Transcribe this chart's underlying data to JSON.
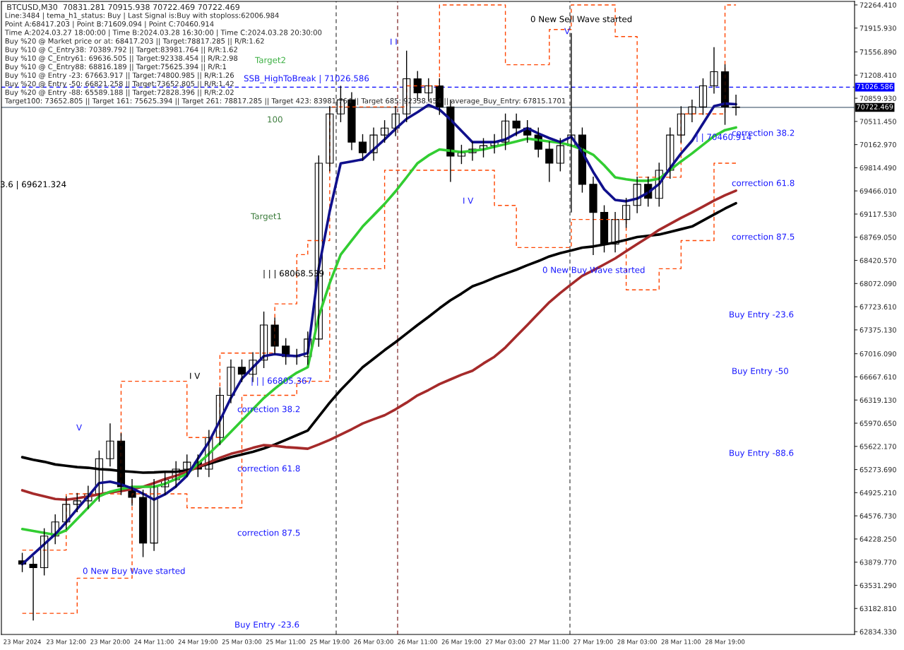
{
  "chart_data": {
    "type": "candlestick",
    "title": "BTCUSD,M30  70831.281 70915.938 70722.469 70722.469",
    "categories": [
      "23 Mar 2024",
      null,
      null,
      null,
      "23 Mar 12:00",
      null,
      null,
      null,
      "23 Mar 20:00",
      null,
      null,
      null,
      "24 Mar 11:00",
      null,
      null,
      null,
      "24 Mar 19:00",
      null,
      null,
      null,
      "25 Mar 03:00",
      null,
      null,
      null,
      "25 Mar 11:00",
      null,
      null,
      null,
      "25 Mar 19:00",
      null,
      null,
      null,
      "26 Mar 03:00",
      null,
      null,
      null,
      "26 Mar 11:00",
      null,
      null,
      null,
      "26 Mar 19:00",
      null,
      null,
      null,
      "27 Mar 03:00",
      null,
      null,
      null,
      "27 Mar 11:00",
      null,
      null,
      null,
      "27 Mar 19:00",
      null,
      null,
      null,
      "28 Mar 03:00",
      null,
      null,
      null,
      "28 Mar 11:00",
      null,
      null,
      null,
      "28 Mar 19:00",
      null
    ],
    "ohlc": [
      [
        63900,
        64020,
        63730,
        63850
      ],
      [
        63850,
        63970,
        63003,
        63797
      ],
      [
        63797,
        64390,
        63680,
        64273
      ],
      [
        64273,
        64600,
        64150,
        64485
      ],
      [
        64485,
        64870,
        64370,
        64749
      ],
      [
        64749,
        64920,
        64630,
        64802
      ],
      [
        64802,
        65030,
        64680,
        64908
      ],
      [
        64908,
        65560,
        64790,
        65437
      ],
      [
        65437,
        65967,
        65320,
        65702
      ],
      [
        65702,
        65820,
        64890,
        65014
      ],
      [
        65014,
        65130,
        64730,
        64855
      ],
      [
        64855,
        64970,
        63956,
        64167
      ],
      [
        64167,
        65130,
        64050,
        65014
      ],
      [
        65014,
        65240,
        64890,
        65120
      ],
      [
        65120,
        65400,
        65000,
        65279
      ],
      [
        65279,
        65500,
        65160,
        65384
      ],
      [
        65384,
        65500,
        65160,
        65279
      ],
      [
        65279,
        65870,
        65160,
        65755
      ],
      [
        65755,
        66510,
        65640,
        66390
      ],
      [
        66390,
        66930,
        66270,
        66813
      ],
      [
        66813,
        66930,
        66590,
        66707
      ],
      [
        66707,
        67040,
        66590,
        66919
      ],
      [
        66919,
        67650,
        66800,
        67448
      ],
      [
        67448,
        67560,
        67010,
        67131
      ],
      [
        67131,
        67250,
        66850,
        66972
      ],
      [
        66972,
        67090,
        66850,
        66972
      ],
      [
        66972,
        67350,
        66850,
        67237
      ],
      [
        67237,
        70000,
        67120,
        69883
      ],
      [
        69883,
        70740,
        69760,
        70624
      ],
      [
        70624,
        71047,
        70500,
        70835
      ],
      [
        70835,
        70950,
        70080,
        70200
      ],
      [
        70200,
        70320,
        69920,
        70041
      ],
      [
        70041,
        70420,
        69920,
        70306
      ],
      [
        70306,
        70530,
        70190,
        70412
      ],
      [
        70412,
        70740,
        70290,
        70624
      ],
      [
        70624,
        71576,
        70500,
        71153
      ],
      [
        71153,
        71270,
        70820,
        70941
      ],
      [
        70941,
        71160,
        70820,
        71047
      ],
      [
        71047,
        71160,
        70610,
        70729
      ],
      [
        70729,
        70840,
        69600,
        69989
      ],
      [
        69989,
        70160,
        69870,
        70041
      ],
      [
        70041,
        70210,
        69920,
        70094
      ],
      [
        70094,
        70260,
        69970,
        70147
      ],
      [
        70147,
        70320,
        70030,
        70200
      ],
      [
        70200,
        70630,
        70080,
        70518
      ],
      [
        70518,
        70630,
        70290,
        70412
      ],
      [
        70412,
        70530,
        70190,
        70306
      ],
      [
        70306,
        70420,
        69970,
        70094
      ],
      [
        70094,
        70210,
        69600,
        69883
      ],
      [
        69883,
        70260,
        69760,
        70147
      ],
      [
        70147,
        71841,
        69142,
        70306
      ],
      [
        70306,
        70420,
        69440,
        69565
      ],
      [
        69565,
        69680,
        68500,
        69142
      ],
      [
        69142,
        69250,
        68540,
        68666
      ],
      [
        68666,
        69150,
        68540,
        69036
      ],
      [
        69036,
        69360,
        68910,
        69248
      ],
      [
        69248,
        69680,
        69130,
        69565
      ],
      [
        69565,
        69680,
        69230,
        69353
      ],
      [
        69353,
        69890,
        69230,
        69777
      ],
      [
        69777,
        70420,
        69650,
        70306
      ],
      [
        70306,
        70740,
        70190,
        70624
      ],
      [
        70624,
        70840,
        70500,
        70729
      ],
      [
        70729,
        71160,
        70610,
        71047
      ],
      [
        71047,
        71629,
        70930,
        71259
      ],
      [
        71259,
        71370,
        70460,
        70729
      ],
      [
        70729,
        70915,
        70600,
        70722
      ]
    ],
    "series": [
      {
        "type": "step",
        "color": "#ff4500",
        "line_style": "dashed",
        "values": [
          64061,
          64061,
          64061,
          64061,
          64908,
          64908,
          64908,
          64908,
          64908,
          66602,
          66602,
          66602,
          66602,
          66602,
          66602,
          65755,
          65755,
          65755,
          67025,
          67025,
          67025,
          67025,
          67025,
          67766,
          67766,
          68507,
          68719,
          68719,
          70729,
          70729,
          70729,
          70729,
          70729,
          70729,
          70729,
          71047,
          71047,
          71047,
          72264,
          72264,
          72264,
          72264,
          72264,
          72264,
          71364,
          71364,
          71364,
          71364,
          71894,
          71894,
          72264,
          72264,
          72264,
          72264,
          71788,
          71788,
          69671,
          69671,
          69671,
          69671,
          70624,
          70624,
          70624,
          70624,
          72264,
          72264
        ]
      },
      {
        "type": "step",
        "color": "#ff4500",
        "line_style": "dashed",
        "values": [
          63109,
          63109,
          63109,
          63109,
          63109,
          63638,
          63638,
          63638,
          63638,
          63638,
          64908,
          64908,
          64908,
          64908,
          64908,
          64697,
          64697,
          64697,
          64697,
          64697,
          66390,
          66390,
          66390,
          66390,
          66390,
          66602,
          66602,
          66602,
          68295,
          68295,
          68295,
          68295,
          68295,
          69777,
          69777,
          69777,
          69777,
          69777,
          69777,
          69777,
          69777,
          69777,
          69777,
          69248,
          69248,
          68613,
          68613,
          68613,
          68613,
          68613,
          69036,
          69036,
          69036,
          69036,
          69036,
          67977,
          67977,
          67977,
          68295,
          68295,
          68719,
          68719,
          68719,
          69883,
          69883,
          69883
        ]
      },
      {
        "type": "line",
        "color": "#000000",
        "values": [
          65459,
          65420,
          65390,
          65350,
          65330,
          65310,
          65300,
          65280,
          65270,
          65250,
          65240,
          65226,
          65230,
          65240,
          65240,
          65260,
          65310,
          65360,
          65410,
          65460,
          65500,
          65540,
          65590,
          65650,
          65720,
          65790,
          65861,
          66070,
          66280,
          66470,
          66640,
          66813,
          66940,
          67070,
          67190,
          67320,
          67448,
          67570,
          67700,
          67820,
          67920,
          68030,
          68090,
          68160,
          68220,
          68280,
          68348,
          68410,
          68480,
          68530,
          68570,
          68613,
          68630,
          68660,
          68690,
          68730,
          68771,
          68790,
          68810,
          68850,
          68890,
          68930,
          69020,
          69110,
          69200,
          69280
        ]
      },
      {
        "type": "line",
        "color": "#a52a2a",
        "values": [
          64961,
          64910,
          64870,
          64830,
          64820,
          64840,
          64870,
          64900,
          64930,
          64950,
          64980,
          65014,
          65070,
          65130,
          65180,
          65240,
          65310,
          65380,
          65450,
          65510,
          65550,
          65600,
          65640,
          65630,
          65610,
          65600,
          65586,
          65650,
          65720,
          65800,
          65880,
          65967,
          66030,
          66090,
          66180,
          66280,
          66390,
          66470,
          66560,
          66630,
          66700,
          66760,
          66870,
          66970,
          67110,
          67280,
          67448,
          67620,
          67790,
          67930,
          68060,
          68189,
          68270,
          68360,
          68450,
          68560,
          68666,
          68770,
          68880,
          68970,
          69060,
          69142,
          69230,
          69320,
          69400,
          69470
        ]
      },
      {
        "type": "line",
        "color": "#32cd32",
        "values": [
          64379,
          64350,
          64320,
          64290,
          64360,
          64530,
          64700,
          64870,
          64940,
          64980,
          65014,
          65014,
          65014,
          65060,
          65130,
          65210,
          65360,
          65510,
          65670,
          65840,
          66010,
          66180,
          66350,
          66490,
          66620,
          66730,
          66813,
          67580,
          68080,
          68507,
          68720,
          68930,
          69100,
          69270,
          69460,
          69670,
          69883,
          70000,
          70090,
          70070,
          70050,
          70070,
          70090,
          70130,
          70170,
          70210,
          70253,
          70230,
          70210,
          70190,
          70150,
          70090,
          70010,
          69850,
          69671,
          69640,
          69618,
          69618,
          69650,
          69780,
          69910,
          70030,
          70160,
          70290,
          70380,
          70420
        ]
      },
      {
        "type": "line",
        "color": "#10108c",
        "values": [
          63850,
          64000,
          64150,
          64300,
          64480,
          64680,
          64870,
          65070,
          65090,
          65050,
          64990,
          64910,
          64820,
          64900,
          65020,
          65180,
          65440,
          65690,
          66010,
          66350,
          66640,
          66810,
          66980,
          67010,
          66990,
          66980,
          67025,
          68300,
          69160,
          69880,
          69910,
          69940,
          70090,
          70240,
          70400,
          70550,
          70650,
          70760,
          70690,
          70540,
          70370,
          70200,
          70200,
          70200,
          70240,
          70330,
          70410,
          70330,
          70260,
          70200,
          70280,
          70050,
          69750,
          69490,
          69330,
          69310,
          69350,
          69440,
          69570,
          69810,
          70030,
          70220,
          70480,
          70740,
          70780,
          70770
        ]
      }
    ],
    "ref_lines": [
      {
        "axis": "y",
        "value": 71026.586,
        "label": "71026.586",
        "color": "#0000ff",
        "line_style": "dashed"
      },
      {
        "axis": "y",
        "value": 70722.469,
        "label": "70722.469",
        "color": "#708090",
        "line_style": "solid"
      }
    ],
    "annotations": [
      "Line:3484 | tema_h1_status: Buy | Last Signal is:Buy with stoploss:62006.984",
      "Point A:68417.203 | Point B:71609.094 | Point C:70460.914",
      "Time A:2024.03.27 18:00:00 | Time B:2024.03.28 16:30:00 | Time C:2024.03.28 20:30:00",
      "Buy %20 @ Market price or at: 68417.203 || Target:78817.285 || R/R:1.62",
      "Buy %10 @ C_Entry38: 70389.792 || Target:83981.764 || R/R:1.62",
      "Buy %10 @ C_Entry61: 69636.505 || Target:92338.454 || R/R:2.98",
      "Buy %10 @ C_Entry88: 68816.189 || Target:75625.394 || R/R:1",
      "Buy %10 @ Entry -23: 67663.917 || Target:74800.985 || R/R:1.26",
      "Buy %20 @ Entry -50: 66821.258 || Target:73652.805 || R/R:1.42",
      "Buy %20 @ Entry -88: 65589.188 || Target:72828.396 || R/R:2.02",
      "Target100: 73652.805 || Target 161: 75625.394 || Target 261: 78817.285 || Target 423: 83981.764 || Target 685: 92338.454 || average_Buy_Entry: 67815.1701",
      "SSB_HighToBreak | 71026.586",
      "Target2",
      "100",
      "Target1",
      "| | | 68068.539",
      "| | | 66805.367",
      "I V",
      "correction 38.2",
      "correction 61.8",
      "correction 87.5",
      "0 New Buy Wave started",
      "Buy Entry -23.6",
      "0 New Sell Wave started",
      "0 New Buy Wave started",
      "correction 38.2",
      "correction 61.8",
      "correction 87.5",
      "Buy Entry -23.6",
      "Buy Entry -50",
      "Buy Entry -88.6",
      "| | 70460.914",
      "3.6 | 69621.324",
      "I V",
      "V",
      "V",
      "I I"
    ],
    "ylim": [
      62792,
      72317
    ],
    "yticks": [
      {
        "value": 62834.33,
        "label": "62834.330"
      },
      {
        "value": 63182.81,
        "label": "63182.810"
      },
      {
        "value": 63531.29,
        "label": "63531.290"
      },
      {
        "value": 63879.77,
        "label": "63879.770"
      },
      {
        "value": 64228.25,
        "label": "64228.250"
      },
      {
        "value": 64576.73,
        "label": "64576.730"
      },
      {
        "value": 64925.21,
        "label": "64925.210"
      },
      {
        "value": 65273.69,
        "label": "65273.690"
      },
      {
        "value": 65622.17,
        "label": "65622.170"
      },
      {
        "value": 65970.65,
        "label": "65970.650"
      },
      {
        "value": 66319.13,
        "label": "66319.130"
      },
      {
        "value": 66667.61,
        "label": "66667.610"
      },
      {
        "value": 67016.09,
        "label": "67016.090"
      },
      {
        "value": 67375.13,
        "label": "67375.130"
      },
      {
        "value": 67723.61,
        "label": "67723.610"
      },
      {
        "value": 68072.09,
        "label": "68072.090"
      },
      {
        "value": 68420.57,
        "label": "68420.570"
      },
      {
        "value": 68769.05,
        "label": "68769.050"
      },
      {
        "value": 69117.53,
        "label": "69117.530"
      },
      {
        "value": 69466.01,
        "label": "69466.010"
      },
      {
        "value": 69814.49,
        "label": "69814.490"
      },
      {
        "value": 70162.97,
        "label": "70162.970"
      },
      {
        "value": 70511.45,
        "label": "70511.450"
      },
      {
        "value": 70859.93,
        "label": "70859.930"
      },
      {
        "value": 71208.41,
        "label": "71208.410"
      },
      {
        "value": 71556.89,
        "label": "71556.890"
      },
      {
        "value": 71915.93,
        "label": "71915.930"
      },
      {
        "value": 72264.41,
        "label": "72264.410"
      }
    ],
    "grid": false,
    "legend": false
  }
}
